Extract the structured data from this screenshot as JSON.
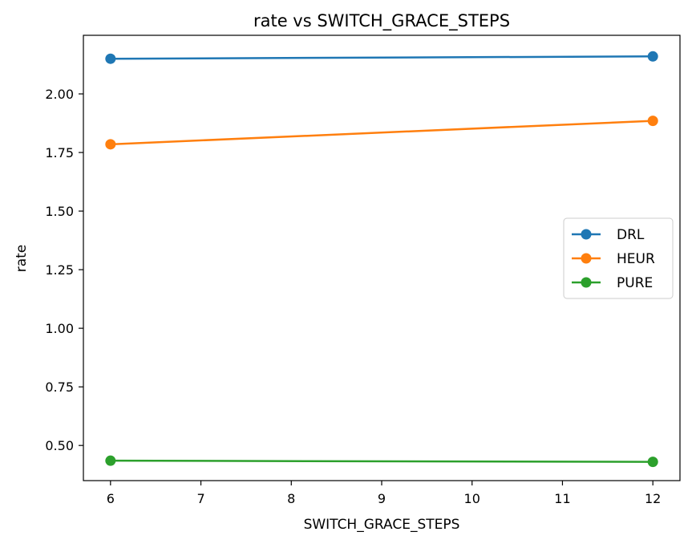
{
  "chart_data": {
    "type": "line",
    "title": "rate vs SWITCH_GRACE_STEPS",
    "xlabel": "SWITCH_GRACE_STEPS",
    "ylabel": "rate",
    "x": [
      6,
      12
    ],
    "xlim": [
      5.7,
      12.3
    ],
    "ylim": [
      0.35,
      2.25
    ],
    "xticks": [
      6,
      7,
      8,
      9,
      10,
      11,
      12
    ],
    "yticks": [
      0.5,
      0.75,
      1.0,
      1.25,
      1.5,
      1.75,
      2.0
    ],
    "ytick_labels": [
      "0.50",
      "0.75",
      "1.00",
      "1.25",
      "1.50",
      "1.75",
      "2.00"
    ],
    "grid": false,
    "legend_position": "center-right",
    "series": [
      {
        "name": "DRL",
        "values": [
          2.15,
          2.16
        ],
        "color": "#1f77b4"
      },
      {
        "name": "HEUR",
        "values": [
          1.785,
          1.885
        ],
        "color": "#ff7f0e"
      },
      {
        "name": "PURE",
        "values": [
          0.435,
          0.43
        ],
        "color": "#2ca02c"
      }
    ]
  }
}
